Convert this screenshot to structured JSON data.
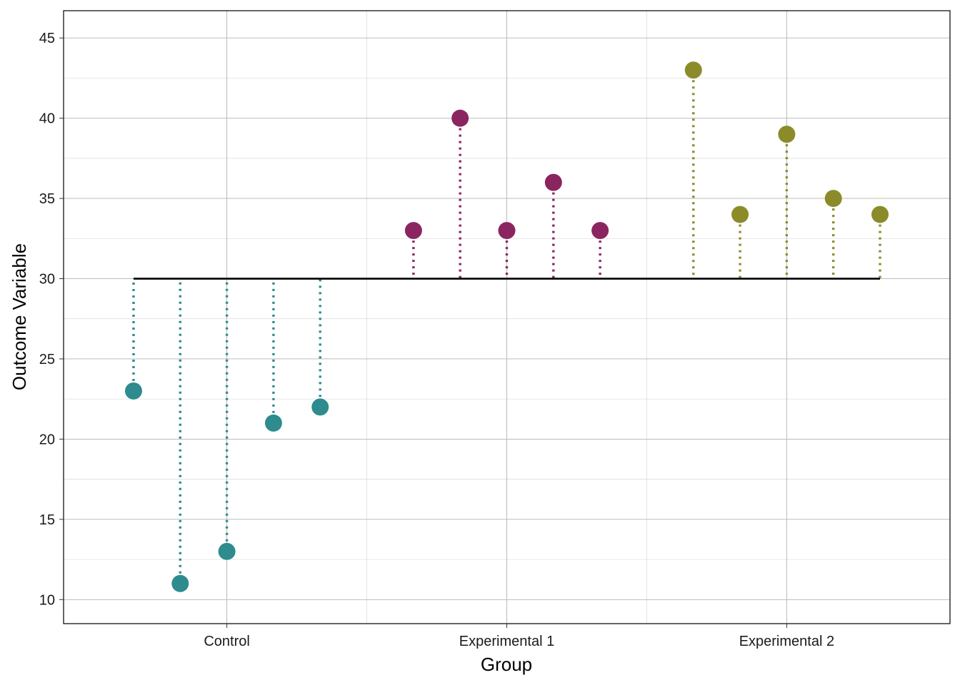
{
  "chart_data": {
    "type": "scatter",
    "title": "",
    "xlabel": "Group",
    "ylabel": "Outcome Variable",
    "categories": [
      "Control",
      "Experimental 1",
      "Experimental 2"
    ],
    "ylim": [
      8.5,
      46.7
    ],
    "yticks": [
      10,
      15,
      20,
      25,
      30,
      35,
      40,
      45
    ],
    "grid": true,
    "legend": "none",
    "reference_line": {
      "y": 30,
      "color": "#000000"
    },
    "series": [
      {
        "group": "Control",
        "color": "#2E8B8E",
        "x": [
          1,
          2,
          3,
          4,
          5
        ],
        "values": [
          23,
          11,
          13,
          21,
          22
        ]
      },
      {
        "group": "Experimental 1",
        "color": "#8B2560",
        "x": [
          7,
          8,
          9,
          10,
          11
        ],
        "values": [
          33,
          40,
          33,
          36,
          33
        ]
      },
      {
        "group": "Experimental 2",
        "color": "#8B8B2A",
        "x": [
          13,
          14,
          15,
          16,
          17
        ],
        "values": [
          43,
          34,
          39,
          35,
          34
        ]
      }
    ],
    "xlim": [
      -0.5,
      18.5
    ],
    "category_x": [
      3,
      9,
      15
    ]
  }
}
